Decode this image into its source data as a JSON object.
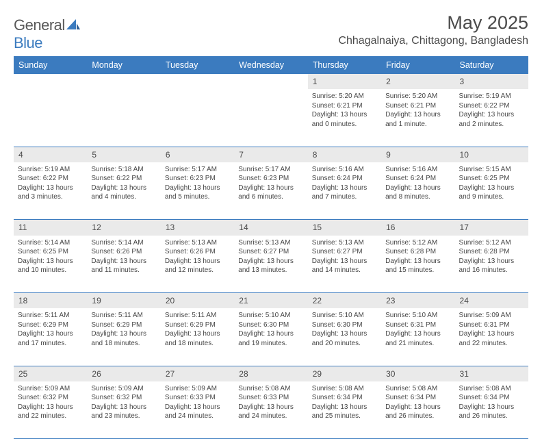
{
  "brand": {
    "general": "General",
    "blue": "Blue"
  },
  "title": "May 2025",
  "location": "Chhagalnaiya, Chittagong, Bangladesh",
  "colors": {
    "header_bg": "#3b7bbf",
    "header_text": "#ffffff",
    "daynum_bg": "#eaeaea",
    "rule": "#3b7bbf",
    "text": "#464646",
    "background": "#ffffff"
  },
  "day_headers": [
    "Sunday",
    "Monday",
    "Tuesday",
    "Wednesday",
    "Thursday",
    "Friday",
    "Saturday"
  ],
  "weeks": [
    {
      "nums": [
        "",
        "",
        "",
        "",
        "1",
        "2",
        "3"
      ],
      "cells": [
        null,
        null,
        null,
        null,
        {
          "sunrise": "Sunrise: 5:20 AM",
          "sunset": "Sunset: 6:21 PM",
          "day1": "Daylight: 13 hours",
          "day2": "and 0 minutes."
        },
        {
          "sunrise": "Sunrise: 5:20 AM",
          "sunset": "Sunset: 6:21 PM",
          "day1": "Daylight: 13 hours",
          "day2": "and 1 minute."
        },
        {
          "sunrise": "Sunrise: 5:19 AM",
          "sunset": "Sunset: 6:22 PM",
          "day1": "Daylight: 13 hours",
          "day2": "and 2 minutes."
        }
      ]
    },
    {
      "nums": [
        "4",
        "5",
        "6",
        "7",
        "8",
        "9",
        "10"
      ],
      "cells": [
        {
          "sunrise": "Sunrise: 5:19 AM",
          "sunset": "Sunset: 6:22 PM",
          "day1": "Daylight: 13 hours",
          "day2": "and 3 minutes."
        },
        {
          "sunrise": "Sunrise: 5:18 AM",
          "sunset": "Sunset: 6:22 PM",
          "day1": "Daylight: 13 hours",
          "day2": "and 4 minutes."
        },
        {
          "sunrise": "Sunrise: 5:17 AM",
          "sunset": "Sunset: 6:23 PM",
          "day1": "Daylight: 13 hours",
          "day2": "and 5 minutes."
        },
        {
          "sunrise": "Sunrise: 5:17 AM",
          "sunset": "Sunset: 6:23 PM",
          "day1": "Daylight: 13 hours",
          "day2": "and 6 minutes."
        },
        {
          "sunrise": "Sunrise: 5:16 AM",
          "sunset": "Sunset: 6:24 PM",
          "day1": "Daylight: 13 hours",
          "day2": "and 7 minutes."
        },
        {
          "sunrise": "Sunrise: 5:16 AM",
          "sunset": "Sunset: 6:24 PM",
          "day1": "Daylight: 13 hours",
          "day2": "and 8 minutes."
        },
        {
          "sunrise": "Sunrise: 5:15 AM",
          "sunset": "Sunset: 6:25 PM",
          "day1": "Daylight: 13 hours",
          "day2": "and 9 minutes."
        }
      ]
    },
    {
      "nums": [
        "11",
        "12",
        "13",
        "14",
        "15",
        "16",
        "17"
      ],
      "cells": [
        {
          "sunrise": "Sunrise: 5:14 AM",
          "sunset": "Sunset: 6:25 PM",
          "day1": "Daylight: 13 hours",
          "day2": "and 10 minutes."
        },
        {
          "sunrise": "Sunrise: 5:14 AM",
          "sunset": "Sunset: 6:26 PM",
          "day1": "Daylight: 13 hours",
          "day2": "and 11 minutes."
        },
        {
          "sunrise": "Sunrise: 5:13 AM",
          "sunset": "Sunset: 6:26 PM",
          "day1": "Daylight: 13 hours",
          "day2": "and 12 minutes."
        },
        {
          "sunrise": "Sunrise: 5:13 AM",
          "sunset": "Sunset: 6:27 PM",
          "day1": "Daylight: 13 hours",
          "day2": "and 13 minutes."
        },
        {
          "sunrise": "Sunrise: 5:13 AM",
          "sunset": "Sunset: 6:27 PM",
          "day1": "Daylight: 13 hours",
          "day2": "and 14 minutes."
        },
        {
          "sunrise": "Sunrise: 5:12 AM",
          "sunset": "Sunset: 6:28 PM",
          "day1": "Daylight: 13 hours",
          "day2": "and 15 minutes."
        },
        {
          "sunrise": "Sunrise: 5:12 AM",
          "sunset": "Sunset: 6:28 PM",
          "day1": "Daylight: 13 hours",
          "day2": "and 16 minutes."
        }
      ]
    },
    {
      "nums": [
        "18",
        "19",
        "20",
        "21",
        "22",
        "23",
        "24"
      ],
      "cells": [
        {
          "sunrise": "Sunrise: 5:11 AM",
          "sunset": "Sunset: 6:29 PM",
          "day1": "Daylight: 13 hours",
          "day2": "and 17 minutes."
        },
        {
          "sunrise": "Sunrise: 5:11 AM",
          "sunset": "Sunset: 6:29 PM",
          "day1": "Daylight: 13 hours",
          "day2": "and 18 minutes."
        },
        {
          "sunrise": "Sunrise: 5:11 AM",
          "sunset": "Sunset: 6:29 PM",
          "day1": "Daylight: 13 hours",
          "day2": "and 18 minutes."
        },
        {
          "sunrise": "Sunrise: 5:10 AM",
          "sunset": "Sunset: 6:30 PM",
          "day1": "Daylight: 13 hours",
          "day2": "and 19 minutes."
        },
        {
          "sunrise": "Sunrise: 5:10 AM",
          "sunset": "Sunset: 6:30 PM",
          "day1": "Daylight: 13 hours",
          "day2": "and 20 minutes."
        },
        {
          "sunrise": "Sunrise: 5:10 AM",
          "sunset": "Sunset: 6:31 PM",
          "day1": "Daylight: 13 hours",
          "day2": "and 21 minutes."
        },
        {
          "sunrise": "Sunrise: 5:09 AM",
          "sunset": "Sunset: 6:31 PM",
          "day1": "Daylight: 13 hours",
          "day2": "and 22 minutes."
        }
      ]
    },
    {
      "nums": [
        "25",
        "26",
        "27",
        "28",
        "29",
        "30",
        "31"
      ],
      "cells": [
        {
          "sunrise": "Sunrise: 5:09 AM",
          "sunset": "Sunset: 6:32 PM",
          "day1": "Daylight: 13 hours",
          "day2": "and 22 minutes."
        },
        {
          "sunrise": "Sunrise: 5:09 AM",
          "sunset": "Sunset: 6:32 PM",
          "day1": "Daylight: 13 hours",
          "day2": "and 23 minutes."
        },
        {
          "sunrise": "Sunrise: 5:09 AM",
          "sunset": "Sunset: 6:33 PM",
          "day1": "Daylight: 13 hours",
          "day2": "and 24 minutes."
        },
        {
          "sunrise": "Sunrise: 5:08 AM",
          "sunset": "Sunset: 6:33 PM",
          "day1": "Daylight: 13 hours",
          "day2": "and 24 minutes."
        },
        {
          "sunrise": "Sunrise: 5:08 AM",
          "sunset": "Sunset: 6:34 PM",
          "day1": "Daylight: 13 hours",
          "day2": "and 25 minutes."
        },
        {
          "sunrise": "Sunrise: 5:08 AM",
          "sunset": "Sunset: 6:34 PM",
          "day1": "Daylight: 13 hours",
          "day2": "and 26 minutes."
        },
        {
          "sunrise": "Sunrise: 5:08 AM",
          "sunset": "Sunset: 6:34 PM",
          "day1": "Daylight: 13 hours",
          "day2": "and 26 minutes."
        }
      ]
    }
  ]
}
